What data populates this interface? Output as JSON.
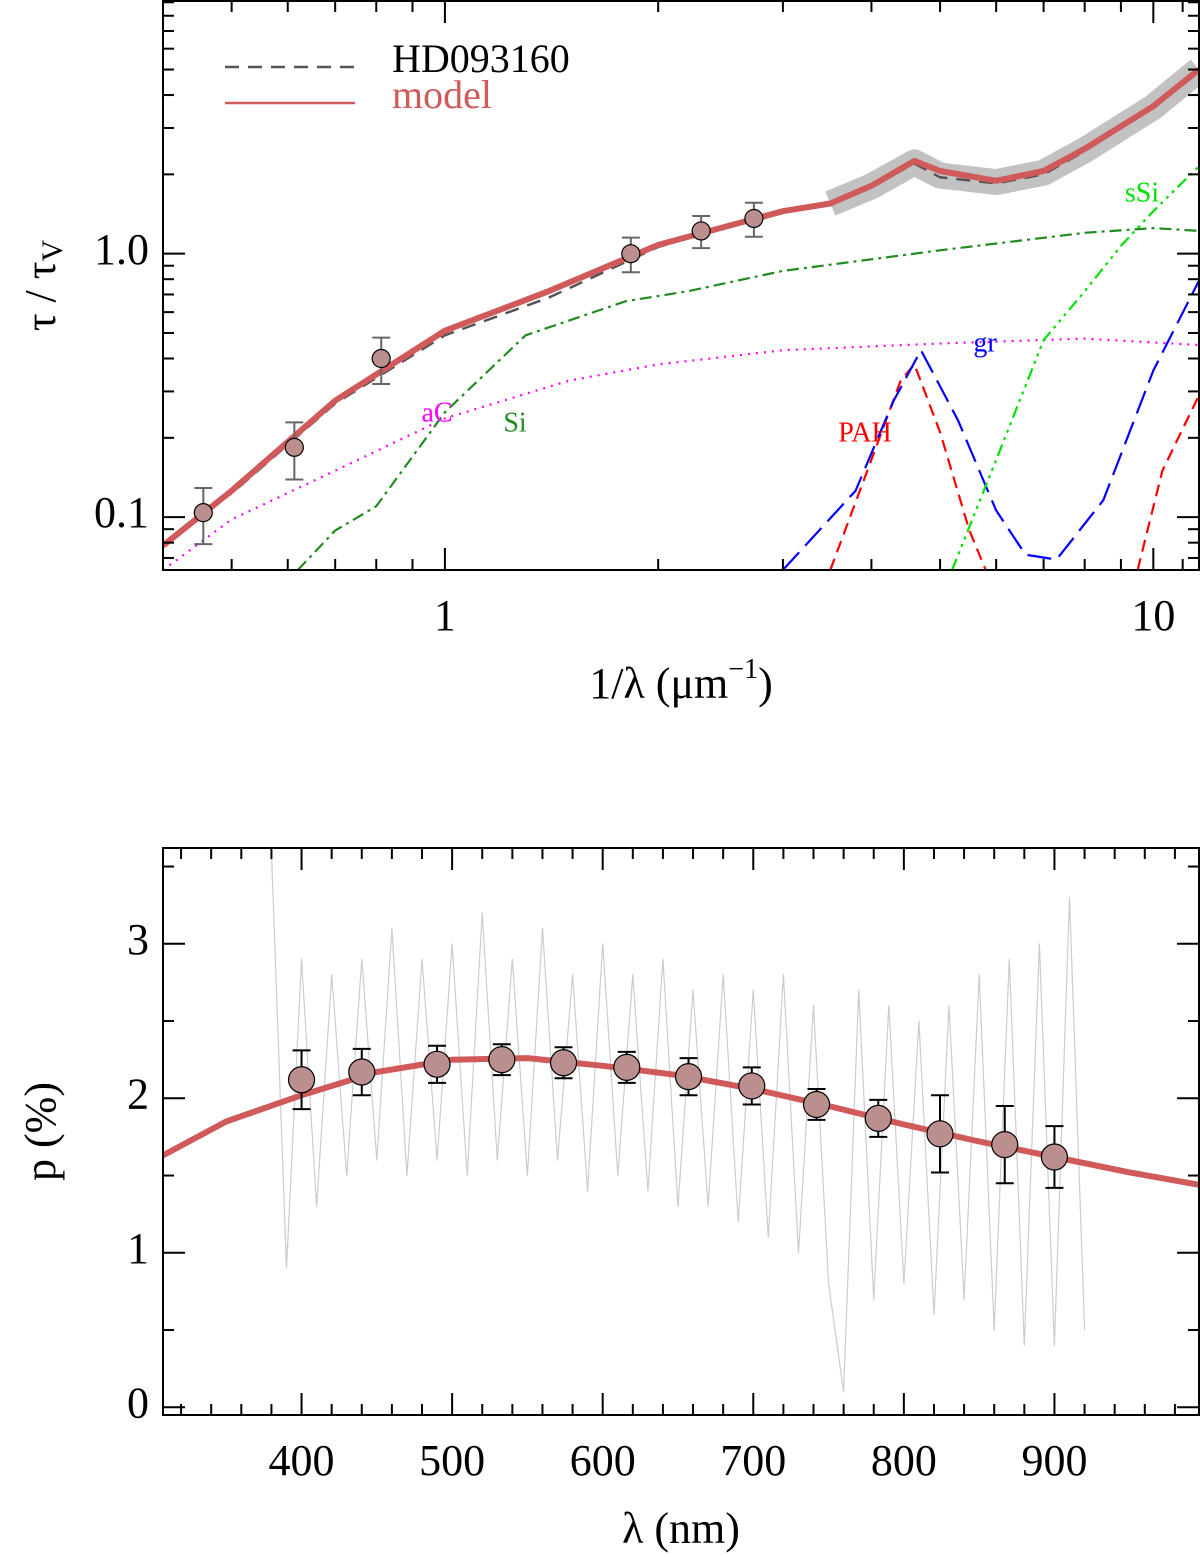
{
  "chart_data": [
    {
      "type": "line",
      "xlog": true,
      "ylog": true,
      "xlabel": [
        "1/λ (μm",
        "−1",
        ")"
      ],
      "ylabel": [
        "τ / τ",
        "V"
      ],
      "xlim": [
        0.4,
        11.6
      ],
      "ylim": [
        0.063,
        9.1
      ],
      "xticks": [
        1,
        10
      ],
      "xticks_minor": [
        0.4,
        0.5,
        0.6,
        0.7,
        0.8,
        0.9,
        2,
        3,
        4,
        5,
        6,
        7,
        8,
        9,
        11
      ],
      "yticks": [
        0.1,
        {
          "value": 1,
          "label": "1.0"
        }
      ],
      "yticks_minor": [
        0.07,
        0.08,
        0.09,
        0.2,
        0.3,
        0.4,
        0.5,
        0.6,
        0.7,
        0.8,
        0.9,
        2,
        3,
        4,
        5,
        6,
        7,
        8,
        9
      ],
      "legend": "upper left",
      "band": {
        "color": "#bbbbbb",
        "x": [
          3.5,
          4,
          4.6,
          5,
          6,
          7,
          8,
          10,
          11.6
        ],
        "values": [
          1.55,
          1.8,
          2.22,
          1.98,
          1.87,
          2.03,
          2.47,
          3.6,
          5.0
        ]
      },
      "series": [
        {
          "name": "HD093160",
          "color": "#555555",
          "style": "dash",
          "in_legend": true,
          "x": [
            0.45,
            0.5,
            0.7,
            1,
            1.4,
            2,
            3,
            3.5,
            4,
            4.6,
            5,
            6,
            7,
            8,
            10,
            11.6
          ],
          "values": [
            0.105,
            0.123,
            0.27,
            0.49,
            0.68,
            1.06,
            1.45,
            1.55,
            1.8,
            2.2,
            1.95,
            1.85,
            2.0,
            2.45,
            3.6,
            5.0
          ]
        },
        {
          "name": "model",
          "color": "#d05a5a",
          "style": "thick",
          "in_legend": true,
          "x": [
            0.4,
            0.5,
            0.7,
            1,
            1.4,
            2,
            3,
            3.5,
            4,
            4.6,
            5,
            6,
            7,
            8,
            10,
            11.6
          ],
          "values": [
            0.078,
            0.126,
            0.277,
            0.51,
            0.72,
            1.08,
            1.45,
            1.55,
            1.81,
            2.25,
            2.06,
            1.89,
            2.06,
            2.5,
            3.63,
            5.0
          ]
        },
        {
          "name": "aC",
          "color": "#ff00ff",
          "style": "dot",
          "in_legend": false,
          "x": [
            0.4,
            0.5,
            0.7,
            1,
            1.5,
            2,
            3,
            5,
            8,
            11.6
          ],
          "values": [
            0.063,
            0.098,
            0.15,
            0.237,
            0.33,
            0.38,
            0.43,
            0.456,
            0.476,
            0.45
          ]
        },
        {
          "name": "Si",
          "color": "#228b22",
          "style": "dashdot",
          "in_legend": false,
          "x": [
            0.62,
            0.7,
            0.8,
            1,
            1.3,
            1.8,
            2.2,
            3,
            5,
            8,
            10,
            11.6
          ],
          "values": [
            0.063,
            0.089,
            0.11,
            0.25,
            0.49,
            0.66,
            0.72,
            0.86,
            1.03,
            1.2,
            1.25,
            1.22
          ]
        },
        {
          "name": "PAH",
          "color": "#ff0000",
          "style": "shortdash",
          "in_legend": false,
          "x": [
            3.5,
            4,
            4.4,
            4.6,
            5,
            5.5,
            5.8,
            7,
            9.5,
            10.3,
            11.6
          ],
          "values": [
            0.063,
            0.165,
            0.33,
            0.38,
            0.21,
            0.089,
            0.063,
            null,
            0.063,
            0.15,
            0.29
          ]
        },
        {
          "name": "gr",
          "color": "#0000ff",
          "style": "longdash",
          "in_legend": false,
          "x": [
            3,
            3.8,
            4.3,
            4.7,
            5.3,
            6,
            6.6,
            7.3,
            8.5,
            10,
            11.6
          ],
          "values": [
            0.063,
            0.126,
            0.277,
            0.43,
            0.233,
            0.106,
            0.072,
            0.069,
            0.116,
            0.36,
            0.79
          ]
        },
        {
          "name": "sSi",
          "color": "#00e000",
          "style": "dashdotdot",
          "in_legend": false,
          "x": [
            5.2,
            6,
            7,
            8,
            9,
            10,
            11.6
          ],
          "values": [
            0.063,
            0.165,
            0.47,
            0.72,
            1.07,
            1.45,
            2.15
          ]
        }
      ],
      "points": {
        "color": "#bc8f8f",
        "x": [
          0.456,
          0.613,
          0.813,
          1.83,
          2.3,
          2.73
        ],
        "values": [
          0.104,
          0.184,
          0.4,
          1.0,
          1.22,
          1.36
        ],
        "errors": [
          0.025,
          0.045,
          0.08,
          0.15,
          0.17,
          0.2
        ]
      }
    },
    {
      "type": "line",
      "xlog": false,
      "ylog": false,
      "xlabel": [
        "λ   (nm)"
      ],
      "ylabel": [
        "p (%)"
      ],
      "xlim": [
        308,
        996
      ],
      "ylim": [
        -0.05,
        3.62
      ],
      "xticks": [
        400,
        500,
        600,
        700,
        800,
        900
      ],
      "xticks_minor": [
        320,
        340,
        360,
        380,
        420,
        440,
        460,
        480,
        520,
        540,
        560,
        580,
        620,
        640,
        660,
        680,
        720,
        740,
        760,
        780,
        820,
        840,
        860,
        880,
        920,
        940,
        960,
        980
      ],
      "yticks": [
        0,
        1,
        2,
        3
      ],
      "yticks_minor": [
        0.5,
        1.5,
        2.5,
        3.5
      ],
      "series": [
        {
          "color": "#cccccc",
          "style": "thin",
          "x": [
            380,
            390,
            400,
            410,
            420,
            430,
            440,
            450,
            460,
            470,
            480,
            490,
            500,
            510,
            520,
            530,
            540,
            550,
            560,
            570,
            580,
            590,
            600,
            610,
            620,
            630,
            640,
            650,
            660,
            670,
            680,
            690,
            700,
            710,
            720,
            730,
            740,
            750,
            760,
            770,
            780,
            790,
            800,
            810,
            820,
            830,
            840,
            850,
            860,
            870,
            880,
            890,
            900,
            910,
            920
          ],
          "values": [
            3.6,
            0.9,
            2.9,
            1.3,
            2.8,
            1.5,
            2.9,
            1.6,
            3.1,
            1.5,
            2.9,
            1.6,
            3.0,
            1.5,
            3.2,
            1.6,
            2.9,
            1.5,
            3.1,
            1.6,
            2.8,
            1.4,
            3.0,
            1.5,
            2.8,
            1.4,
            2.9,
            1.3,
            2.7,
            1.3,
            2.8,
            1.2,
            2.7,
            1.1,
            2.8,
            1.0,
            2.6,
            0.8,
            0.1,
            2.7,
            0.7,
            2.6,
            0.8,
            2.5,
            0.6,
            2.6,
            0.7,
            2.8,
            0.5,
            2.9,
            0.4,
            3.0,
            0.4,
            3.3,
            0.5
          ]
        },
        {
          "color": "#d05a5a",
          "style": "thick",
          "x": [
            308,
            350,
            400,
            450,
            500,
            550,
            600,
            650,
            700,
            750,
            800,
            850,
            900,
            950,
            996
          ],
          "values": [
            1.63,
            1.85,
            2.02,
            2.17,
            2.25,
            2.26,
            2.21,
            2.15,
            2.06,
            1.95,
            1.83,
            1.72,
            1.62,
            1.52,
            1.44
          ]
        }
      ],
      "points": {
        "color": "#bc8f8f",
        "x": [
          400,
          440,
          490,
          533,
          574,
          616,
          657,
          699,
          742,
          783,
          824,
          867,
          900
        ],
        "values": [
          2.12,
          2.17,
          2.22,
          2.25,
          2.23,
          2.2,
          2.14,
          2.08,
          1.96,
          1.87,
          1.77,
          1.7,
          1.62
        ],
        "errors": [
          0.19,
          0.15,
          0.12,
          0.1,
          0.1,
          0.1,
          0.12,
          0.12,
          0.1,
          0.12,
          0.25,
          0.25,
          0.2
        ]
      }
    }
  ]
}
